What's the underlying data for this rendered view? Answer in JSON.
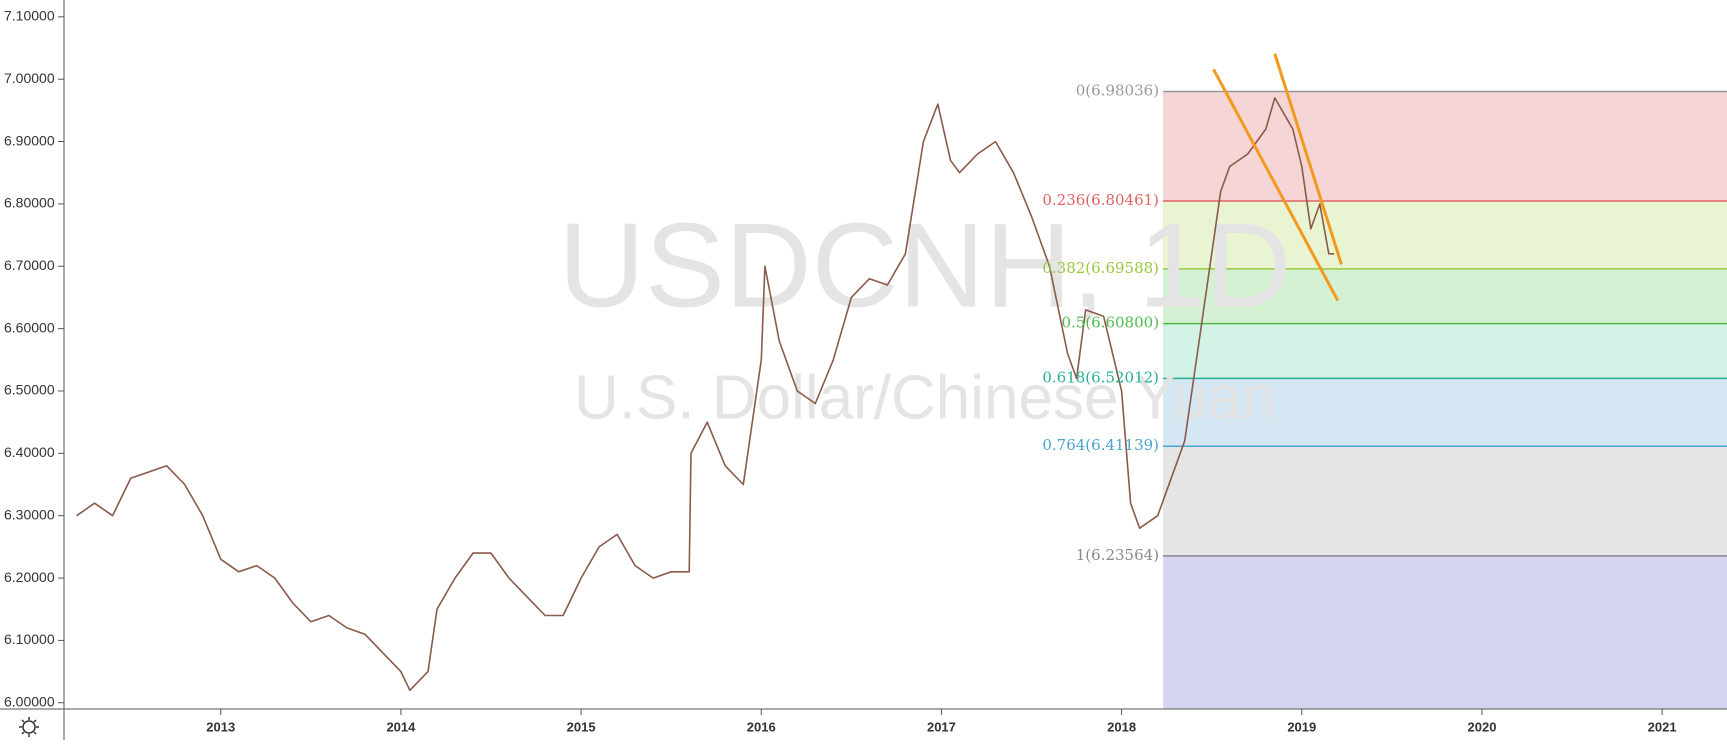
{
  "chart_data": {
    "type": "line",
    "watermark": "USDCNH, 1D",
    "subtitle": "U.S. Dollar/Chinese Yuan",
    "xlim": [
      2012.13,
      2021.36
    ],
    "xticks": [
      2013,
      2014,
      2015,
      2016,
      2017,
      2018,
      2019,
      2020,
      2021
    ],
    "ylim": [
      5.99,
      7.127
    ],
    "yticks": [
      {
        "value": 6.0,
        "label": "6.00000"
      },
      {
        "value": 6.1,
        "label": "6.10000"
      },
      {
        "value": 6.2,
        "label": "6.20000"
      },
      {
        "value": 6.3,
        "label": "6.30000"
      },
      {
        "value": 6.4,
        "label": "6.40000"
      },
      {
        "value": 6.5,
        "label": "6.50000"
      },
      {
        "value": 6.6,
        "label": "6.60000"
      },
      {
        "value": 6.7,
        "label": "6.70000"
      },
      {
        "value": 6.8,
        "label": "6.80000"
      },
      {
        "value": 6.9,
        "label": "6.90000"
      },
      {
        "value": 7.0,
        "label": "7.00000"
      },
      {
        "value": 7.1,
        "label": "7.10000"
      }
    ],
    "x": [
      2012.2,
      2012.3,
      2012.4,
      2012.5,
      2012.6,
      2012.7,
      2012.8,
      2012.9,
      2013.0,
      2013.1,
      2013.2,
      2013.3,
      2013.4,
      2013.5,
      2013.6,
      2013.7,
      2013.8,
      2013.9,
      2014.0,
      2014.05,
      2014.15,
      2014.2,
      2014.3,
      2014.4,
      2014.5,
      2014.6,
      2014.7,
      2014.8,
      2014.9,
      2015.0,
      2015.1,
      2015.2,
      2015.3,
      2015.4,
      2015.5,
      2015.6,
      2015.61,
      2015.7,
      2015.8,
      2015.9,
      2016.0,
      2016.02,
      2016.1,
      2016.2,
      2016.3,
      2016.4,
      2016.5,
      2016.6,
      2016.7,
      2016.8,
      2016.9,
      2016.98,
      2017.05,
      2017.1,
      2017.2,
      2017.3,
      2017.4,
      2017.5,
      2017.6,
      2017.7,
      2017.75,
      2017.8,
      2017.9,
      2018.0,
      2018.05,
      2018.1,
      2018.2,
      2018.3,
      2018.35,
      2018.45,
      2018.55,
      2018.6,
      2018.7,
      2018.8,
      2018.85,
      2018.95,
      2019.0,
      2019.05,
      2019.1,
      2019.15,
      2019.18
    ],
    "series": [
      {
        "color": "#8a5a4a",
        "values": [
          6.3,
          6.32,
          6.3,
          6.36,
          6.37,
          6.38,
          6.35,
          6.3,
          6.23,
          6.21,
          6.22,
          6.2,
          6.16,
          6.13,
          6.14,
          6.12,
          6.11,
          6.08,
          6.05,
          6.02,
          6.05,
          6.15,
          6.2,
          6.24,
          6.24,
          6.2,
          6.17,
          6.14,
          6.14,
          6.2,
          6.25,
          6.27,
          6.22,
          6.2,
          6.21,
          6.21,
          6.4,
          6.45,
          6.38,
          6.35,
          6.55,
          6.7,
          6.58,
          6.5,
          6.48,
          6.55,
          6.65,
          6.68,
          6.67,
          6.72,
          6.9,
          6.96,
          6.87,
          6.85,
          6.88,
          6.9,
          6.85,
          6.78,
          6.7,
          6.56,
          6.52,
          6.63,
          6.62,
          6.5,
          6.32,
          6.28,
          6.3,
          6.38,
          6.42,
          6.62,
          6.82,
          6.86,
          6.88,
          6.92,
          6.97,
          6.92,
          6.86,
          6.76,
          6.8,
          6.72,
          6.72
        ]
      }
    ],
    "fib_start_x": 2018.23,
    "fib_levels": [
      {
        "value": 6.98036,
        "label": "0(6.98036)",
        "color": "#999999"
      },
      {
        "value": 6.80461,
        "label": "0.236(6.80461)",
        "color": "#e06262"
      },
      {
        "value": 6.69588,
        "label": "0.382(6.69588)",
        "color": "#97c93d"
      },
      {
        "value": 6.608,
        "label": "0.5(6.60800)",
        "color": "#4cbb4c"
      },
      {
        "value": 6.52012,
        "label": "0.618(6.52012)",
        "color": "#26b08f"
      },
      {
        "value": 6.41139,
        "label": "0.764(6.41139)",
        "color": "#4aa3d0"
      },
      {
        "value": 6.23564,
        "label": "1(6.23564)",
        "color": "#888888"
      }
    ],
    "zone_colors": [
      "#f5d5d5",
      "#e9f4d2",
      "#d5f1d3",
      "#d3f3e7",
      "#d5e7f3",
      "#e5e5e5",
      "#d5d5f2"
    ],
    "trendlines": [
      {
        "color": "#f39a1e",
        "x": [
          2018.51,
          2019.2
        ],
        "y": [
          7.0159,
          6.645
        ]
      },
      {
        "color": "#f39a1e",
        "x": [
          2018.85,
          2019.22
        ],
        "y": [
          7.041,
          6.703
        ]
      }
    ]
  }
}
